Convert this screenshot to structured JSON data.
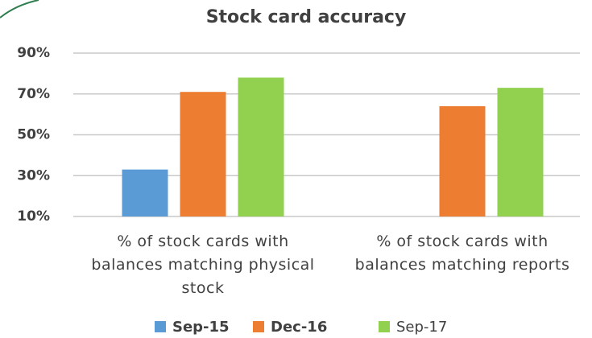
{
  "chart_data": {
    "type": "bar",
    "title": "Stock card accuracy",
    "categories": [
      "% of stock cards with balances matching physical stock",
      "% of stock cards with balances matching reports"
    ],
    "series": [
      {
        "name": "Sep-15",
        "color": "#5b9bd5",
        "values": [
          33,
          null
        ]
      },
      {
        "name": "Dec-16",
        "color": "#ed7d31",
        "values": [
          71,
          64
        ]
      },
      {
        "name": "Sep-17",
        "color": "#92d050",
        "values": [
          78,
          73
        ]
      }
    ],
    "ylim": [
      10,
      90
    ],
    "yticks": [
      {
        "value": 10,
        "label": "10%"
      },
      {
        "value": 30,
        "label": "30%"
      },
      {
        "value": 50,
        "label": "50%"
      },
      {
        "value": 70,
        "label": "70%"
      },
      {
        "value": 90,
        "label": "90%"
      }
    ],
    "grid": true,
    "legend": "bottom"
  }
}
